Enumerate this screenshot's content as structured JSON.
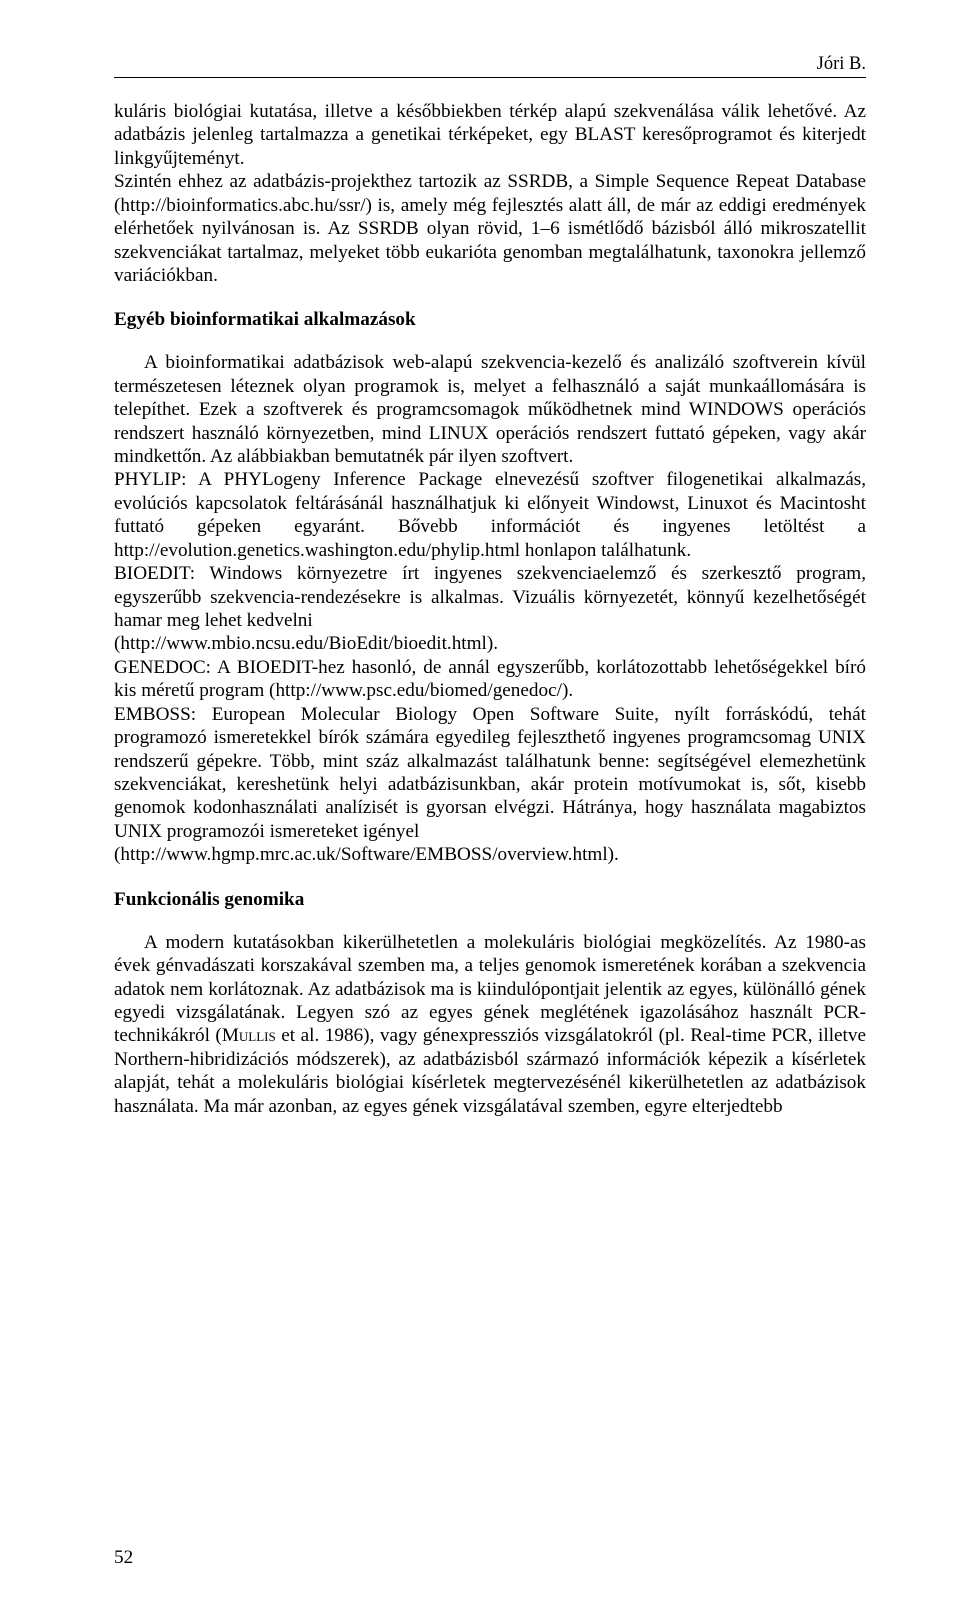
{
  "runningHead": "Jóri B.",
  "para1": "kuláris biológiai kutatása, illetve a későbbiekben térkép alapú szekvenálása válik lehetővé. Az adatbázis jelenleg tartalmazza a genetikai térképeket, egy BLAST keresőprogramot és kiterjedt linkgyűjteményt.",
  "para2": "Szintén ehhez az adatbázis-projekthez tartozik az SSRDB, a Simple Sequence Repeat Database (http://bioinformatics.abc.hu/ssr/) is, amely még fejlesztés alatt áll, de már az eddigi eredmények elérhetőek nyilvánosan is. Az SSRDB olyan rövid, 1–6 ismétlődő bázisból álló mikroszatellit szekvenciákat tartalmaz, melyeket több eukarióta genomban megtalálhatunk, taxonokra jellemző variációkban.",
  "heading1": "Egyéb bioinformatikai alkalmazások",
  "para3": "A bioinformatikai adatbázisok web-alapú szekvencia-kezelő és analizáló szoftverein kívül természetesen léteznek olyan programok is, melyet a felhasználó a saját munkaállomására is telepíthet. Ezek a szoftverek és programcsomagok működhetnek mind WINDOWS operációs rendszert használó környezetben, mind LINUX operációs rendszert futtató gépeken, vagy akár mindkettőn. Az alábbiakban bemutatnék pár ilyen szoftvert.",
  "para4": "PHYLIP: A PHYLogeny Inference Package elnevezésű szoftver filogenetikai alkalmazás, evolúciós kapcsolatok feltárásánál használhatjuk ki előnyeit Windowst, Linuxot és Macintosht futtató gépeken egyaránt. Bővebb információt és ingyenes letöltést a http://evolution.genetics.washington.edu/phylip.html honlapon találhatunk.",
  "para5": "BIOEDIT: Windows környezetre írt ingyenes szekvenciaelemző és szerkesztő program, egyszerűbb szekvencia-rendezésekre is alkalmas. Vizuális környezetét, könnyű kezelhetőségét hamar meg lehet kedvelni",
  "para5b": "(http://www.mbio.ncsu.edu/BioEdit/bioedit.html).",
  "para6": "GENEDOC: A BIOEDIT-hez hasonló, de annál egyszerűbb, korlátozottabb lehetőségekkel bíró kis méretű program (http://www.psc.edu/biomed/genedoc/).",
  "para7": "EMBOSS: European Molecular Biology Open Software Suite, nyílt forráskódú, tehát programozó ismeretekkel bírók számára egyedileg fejleszthető ingyenes programcsomag UNIX rendszerű gépekre. Több, mint száz alkalmazást találhatunk benne: segítségével elemezhetünk szekvenciákat, kereshetünk helyi adatbázisunkban, akár protein motívumokat is, sőt, kisebb genomok kodonhasználati analízisét is gyorsan elvégzi. Hátránya, hogy használata magabiztos UNIX programozói ismereteket igényel",
  "para7b": "(http://www.hgmp.mrc.ac.uk/Software/EMBOSS/overview.html).",
  "heading2": "Funkcionális genomika",
  "para8a": "A modern kutatásokban kikerülhetetlen a molekuláris biológiai megközelítés. Az 1980-as évek génvadászati korszakával szemben ma, a teljes genomok ismeretének korában a szekvencia adatok nem korlátoznak. Az adatbázisok ma is kiindulópontjait jelentik az egyes, különálló gének egyedi vizsgálatának. Legyen szó az egyes gének meglétének igazolásához használt PCR-technikákról (",
  "para8author": "Mullis",
  "para8b": " et al. 1986), vagy génexpressziós vizsgálatokról (pl. Real-time PCR, illetve Northern-hibridizációs módszerek), az adatbázisból származó információk képezik a kísérletek alapját, tehát a molekuláris biológiai kísérletek megtervezésénél kikerülhetetlen az adatbázisok használata. Ma már azonban, az egyes gének vizsgálatával szemben, egyre elterjedtebb",
  "pageNumber": "52"
}
